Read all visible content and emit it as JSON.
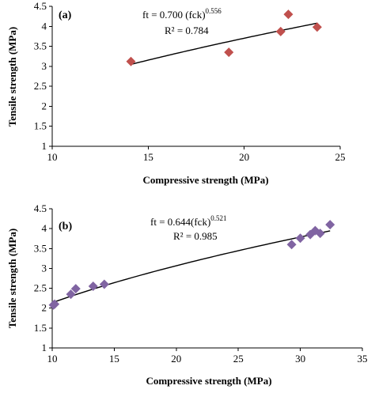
{
  "colors": {
    "panel_a_marker": "#c0504d",
    "panel_b_marker": "#8064a2",
    "trendline": "#000000"
  },
  "chart_data": [
    {
      "type": "scatter",
      "panel_label": "(a)",
      "xlabel": "Compressive strength (MPa)",
      "ylabel": "Tensile strength (MPa)",
      "xlim": [
        10,
        25
      ],
      "ylim": [
        1,
        4.5
      ],
      "xticks": [
        "10",
        "15",
        "20",
        "25"
      ],
      "yticks": [
        "1",
        "1.5",
        "2",
        "2.5",
        "3",
        "3.5",
        "4",
        "4.5"
      ],
      "grid": false,
      "marker": "diamond",
      "points": [
        {
          "x": 14.1,
          "y": 3.12
        },
        {
          "x": 19.2,
          "y": 3.35
        },
        {
          "x": 21.9,
          "y": 3.87
        },
        {
          "x": 22.3,
          "y": 4.3
        },
        {
          "x": 23.8,
          "y": 3.98
        }
      ],
      "trendline": {
        "type": "power",
        "a": 0.7,
        "b": 0.556,
        "x_range": [
          14.1,
          23.8
        ]
      },
      "annotations": {
        "equation_base": "ft = 0.700 (fck)",
        "equation_exp": "0.556",
        "r2": "R² = 0.784"
      }
    },
    {
      "type": "scatter",
      "panel_label": "(b)",
      "xlabel": "Compressive strength (MPa)",
      "ylabel": "Tensile strength (MPa)",
      "xlim": [
        10,
        35
      ],
      "ylim": [
        1,
        4.5
      ],
      "xticks": [
        "10",
        "15",
        "20",
        "25",
        "30",
        "35"
      ],
      "yticks": [
        "1",
        "1.5",
        "2",
        "2.5",
        "3",
        "3.5",
        "4",
        "4.5"
      ],
      "grid": false,
      "marker": "diamond",
      "points": [
        {
          "x": 10.1,
          "y": 2.08
        },
        {
          "x": 10.2,
          "y": 2.1
        },
        {
          "x": 11.5,
          "y": 2.35
        },
        {
          "x": 11.9,
          "y": 2.49
        },
        {
          "x": 13.3,
          "y": 2.55
        },
        {
          "x": 14.2,
          "y": 2.6
        },
        {
          "x": 29.3,
          "y": 3.6
        },
        {
          "x": 30.0,
          "y": 3.76
        },
        {
          "x": 30.8,
          "y": 3.85
        },
        {
          "x": 31.2,
          "y": 3.95
        },
        {
          "x": 31.6,
          "y": 3.88
        },
        {
          "x": 32.4,
          "y": 4.1
        }
      ],
      "trendline": {
        "type": "power",
        "a": 0.644,
        "b": 0.521,
        "x_range": [
          10.1,
          32.4
        ]
      },
      "annotations": {
        "equation_base": "ft = 0.644(fck)",
        "equation_exp": "0.521",
        "r2": "R² = 0.985"
      }
    }
  ]
}
